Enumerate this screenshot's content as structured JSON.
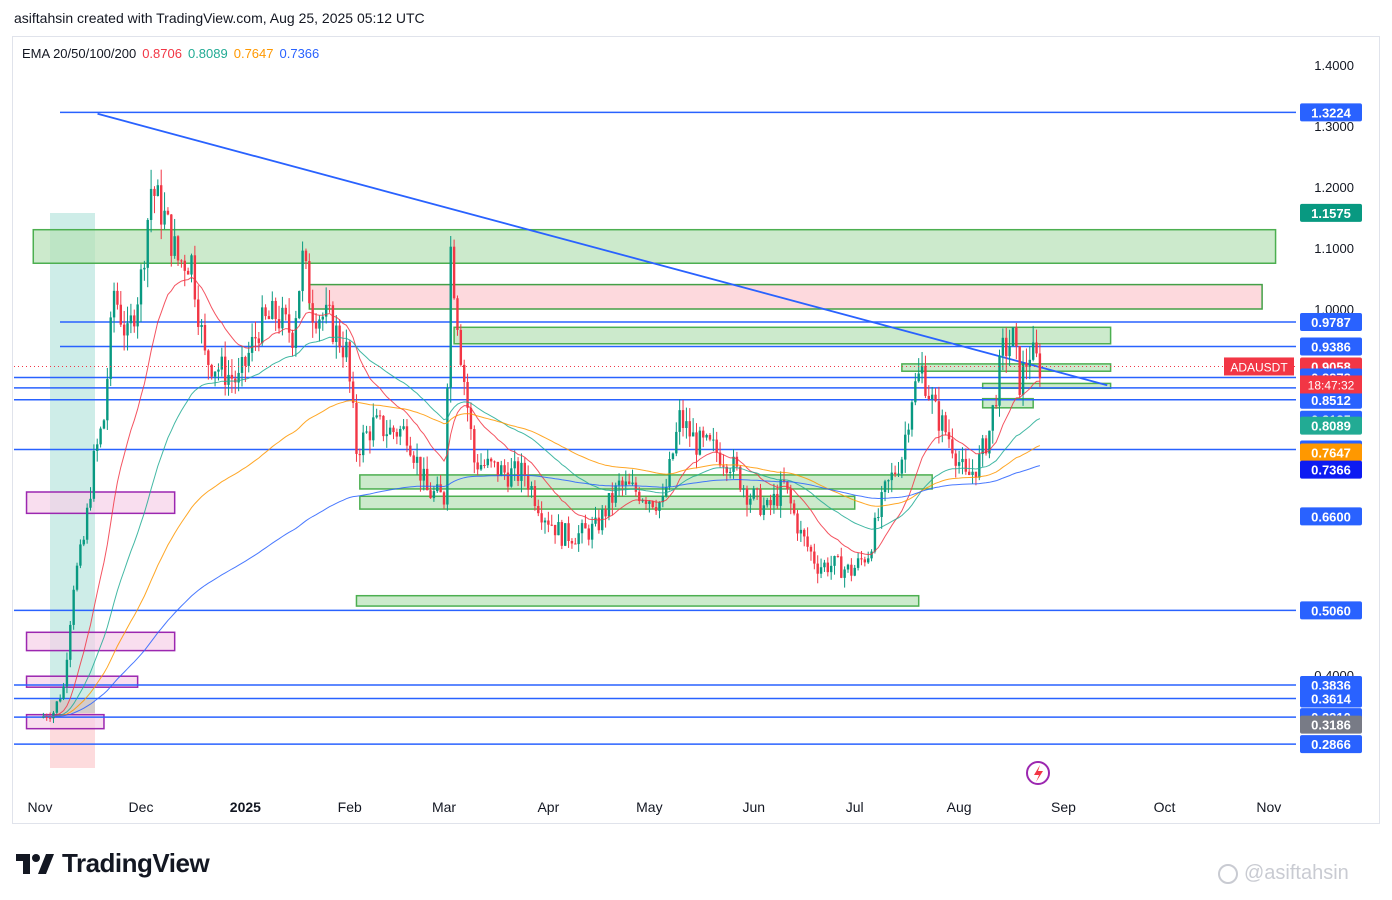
{
  "header": {
    "text": "asiftahsin created with TradingView.com, Aug 25, 2025 05:12 UTC"
  },
  "ema_legend": {
    "label": "EMA 20/50/100/200",
    "values": [
      {
        "text": "0.8706",
        "color": "#f23645"
      },
      {
        "text": "0.8089",
        "color": "#22ab94"
      },
      {
        "text": "0.7647",
        "color": "#ff9800"
      },
      {
        "text": "0.7366",
        "color": "#2962ff"
      }
    ]
  },
  "brand": {
    "name": "TradingView"
  },
  "watermark": {
    "text": "@asiftahsin"
  },
  "colors": {
    "up": "#089981",
    "down": "#f23645",
    "hline": "#2962ff",
    "green_zone": "#b7e1b7",
    "pink_zone": "#fcc9cf",
    "purple_zone": "#f7d0e8"
  },
  "chart_data": {
    "type": "candlestick",
    "symbol": "ADAUSDT",
    "price_axis": {
      "ticks": [
        "1.4000",
        "1.3000",
        "1.2000",
        "1.1000",
        "1.0000",
        "0.4000"
      ],
      "ylim": [
        0.24,
        1.45
      ]
    },
    "time_axis": {
      "ticks": [
        "Nov",
        "Dec",
        "2025",
        "Feb",
        "Mar",
        "Apr",
        "May",
        "Jun",
        "Jul",
        "Aug",
        "Sep",
        "Oct",
        "Nov"
      ]
    },
    "price_labels": [
      {
        "text": "1.3224",
        "value": 1.3224,
        "bg": "#2962ff"
      },
      {
        "text": "1.1575",
        "value": 1.1575,
        "bg": "#089981"
      },
      {
        "text": "0.9787",
        "value": 0.9787,
        "bg": "#2962ff"
      },
      {
        "text": "0.9386",
        "value": 0.9386,
        "bg": "#2962ff"
      },
      {
        "text": "0.9058",
        "value": 0.9058,
        "bg": "#f23645"
      },
      {
        "text": "0.8878",
        "value": 0.8878,
        "bg": "#2962ff"
      },
      {
        "text": "0.8706",
        "value": 0.8706,
        "bg": "#f23645"
      },
      {
        "text": "0.8512",
        "value": 0.8512,
        "bg": "#2962ff"
      },
      {
        "text": "0.8185",
        "value": 0.8185,
        "bg": "#2962ff"
      },
      {
        "text": "0.8089",
        "value": 0.8089,
        "bg": "#22ab94"
      },
      {
        "text": "0.7696",
        "value": 0.7696,
        "bg": "#2962ff"
      },
      {
        "text": "0.7647",
        "value": 0.7647,
        "bg": "#ff9800"
      },
      {
        "text": "0.7366",
        "value": 0.7366,
        "bg": "#0d1bf2"
      },
      {
        "text": "0.6600",
        "value": 0.66,
        "bg": "#2962ff"
      },
      {
        "text": "0.5060",
        "value": 0.506,
        "bg": "#2962ff"
      },
      {
        "text": "0.3836",
        "value": 0.3836,
        "bg": "#2962ff"
      },
      {
        "text": "0.3614",
        "value": 0.3614,
        "bg": "#2962ff"
      },
      {
        "text": "0.3310",
        "value": 0.331,
        "bg": "#2962ff"
      },
      {
        "text": "0.3186",
        "value": 0.3186,
        "bg": "#787b86"
      },
      {
        "text": "0.2866",
        "value": 0.2866,
        "bg": "#2962ff"
      }
    ],
    "current": {
      "symbol_label": "ADAUSDT",
      "price": "0.9058",
      "countdown": "18:47:32",
      "value": 0.9058
    },
    "horizontal_lines": [
      1.3224,
      0.9787,
      0.9386,
      0.8878,
      0.8706,
      0.8512,
      0.7696,
      0.506,
      0.3836,
      0.3614,
      0.331,
      0.2866
    ],
    "trend_line": {
      "from": [
        "2024-11-27",
        1.32
      ],
      "to": [
        "2025-09-14",
        0.875
      ]
    },
    "closes": [
      [
        "2024-11-01",
        0.33
      ],
      [
        "2024-11-05",
        0.34
      ],
      [
        "2024-11-08",
        0.38
      ],
      [
        "2024-11-11",
        0.55
      ],
      [
        "2024-11-14",
        0.62
      ],
      [
        "2024-11-17",
        0.75
      ],
      [
        "2024-11-20",
        0.82
      ],
      [
        "2024-11-23",
        1.03
      ],
      [
        "2024-11-27",
        0.95
      ],
      [
        "2024-12-01",
        1.05
      ],
      [
        "2024-12-04",
        1.2
      ],
      [
        "2024-12-08",
        1.15
      ],
      [
        "2024-12-12",
        1.08
      ],
      [
        "2024-12-16",
        1.08
      ],
      [
        "2024-12-20",
        0.92
      ],
      [
        "2024-12-25",
        0.9
      ],
      [
        "2024-12-30",
        0.88
      ],
      [
        "2025-01-05",
        0.97
      ],
      [
        "2025-01-10",
        0.99
      ],
      [
        "2025-01-15",
        0.96
      ],
      [
        "2025-01-18",
        1.08
      ],
      [
        "2025-01-21",
        1.0
      ],
      [
        "2025-01-26",
        0.98
      ],
      [
        "2025-01-31",
        0.93
      ],
      [
        "2025-02-03",
        0.77
      ],
      [
        "2025-02-08",
        0.81
      ],
      [
        "2025-02-13",
        0.8
      ],
      [
        "2025-02-18",
        0.8
      ],
      [
        "2025-02-24",
        0.7
      ],
      [
        "2025-03-01",
        0.69
      ],
      [
        "2025-03-03",
        1.1
      ],
      [
        "2025-03-06",
        0.93
      ],
      [
        "2025-03-10",
        0.75
      ],
      [
        "2025-03-15",
        0.74
      ],
      [
        "2025-03-20",
        0.73
      ],
      [
        "2025-03-25",
        0.73
      ],
      [
        "2025-03-30",
        0.67
      ],
      [
        "2025-04-05",
        0.63
      ],
      [
        "2025-04-10",
        0.63
      ],
      [
        "2025-04-15",
        0.64
      ],
      [
        "2025-04-22",
        0.71
      ],
      [
        "2025-04-28",
        0.7
      ],
      [
        "2025-05-05",
        0.68
      ],
      [
        "2025-05-10",
        0.82
      ],
      [
        "2025-05-15",
        0.78
      ],
      [
        "2025-05-20",
        0.77
      ],
      [
        "2025-05-25",
        0.75
      ],
      [
        "2025-05-30",
        0.7
      ],
      [
        "2025-06-05",
        0.67
      ],
      [
        "2025-06-10",
        0.71
      ],
      [
        "2025-06-15",
        0.63
      ],
      [
        "2025-06-20",
        0.58
      ],
      [
        "2025-06-25",
        0.58
      ],
      [
        "2025-06-30",
        0.57
      ],
      [
        "2025-07-05",
        0.6
      ],
      [
        "2025-07-10",
        0.7
      ],
      [
        "2025-07-15",
        0.76
      ],
      [
        "2025-07-18",
        0.86
      ],
      [
        "2025-07-21",
        0.9
      ],
      [
        "2025-07-25",
        0.83
      ],
      [
        "2025-07-30",
        0.78
      ],
      [
        "2025-08-03",
        0.72
      ],
      [
        "2025-08-07",
        0.75
      ],
      [
        "2025-08-10",
        0.8
      ],
      [
        "2025-08-14",
        0.93
      ],
      [
        "2025-08-17",
        0.95
      ],
      [
        "2025-08-19",
        0.88
      ],
      [
        "2025-08-22",
        0.93
      ],
      [
        "2025-08-25",
        0.9058
      ]
    ],
    "zones": [
      {
        "kind": "green",
        "from": "2024-10-30",
        "to": "2025-11-03",
        "top": 1.13,
        "bottom": 1.075
      },
      {
        "kind": "pink",
        "from": "2025-01-20",
        "to": "2025-10-30",
        "top": 1.04,
        "bottom": 1.0
      },
      {
        "kind": "green",
        "from": "2025-03-04",
        "to": "2025-09-15",
        "top": 0.97,
        "bottom": 0.943
      },
      {
        "kind": "green",
        "from": "2025-07-15",
        "to": "2025-09-15",
        "top": 0.91,
        "bottom": 0.898
      },
      {
        "kind": "green",
        "from": "2025-08-08",
        "to": "2025-09-15",
        "top": 0.878,
        "bottom": 0.87
      },
      {
        "kind": "green",
        "from": "2025-08-08",
        "to": "2025-08-23",
        "top": 0.853,
        "bottom": 0.838
      },
      {
        "kind": "green",
        "from": "2025-02-04",
        "to": "2025-07-24",
        "top": 0.728,
        "bottom": 0.705
      },
      {
        "kind": "green",
        "from": "2025-02-04",
        "to": "2025-07-01",
        "top": 0.693,
        "bottom": 0.672
      },
      {
        "kind": "green",
        "from": "2025-02-03",
        "to": "2025-07-20",
        "top": 0.53,
        "bottom": 0.513
      },
      {
        "kind": "purple",
        "from": "2024-10-28",
        "to": "2024-12-11",
        "top": 0.7,
        "bottom": 0.665
      },
      {
        "kind": "purple",
        "from": "2024-10-28",
        "to": "2024-12-11",
        "top": 0.47,
        "bottom": 0.44
      },
      {
        "kind": "purple",
        "from": "2024-10-28",
        "to": "2024-11-30",
        "top": 0.398,
        "bottom": 0.38
      },
      {
        "kind": "purple",
        "from": "2024-10-28",
        "to": "2024-11-20",
        "top": 0.335,
        "bottom": 0.312
      }
    ]
  }
}
